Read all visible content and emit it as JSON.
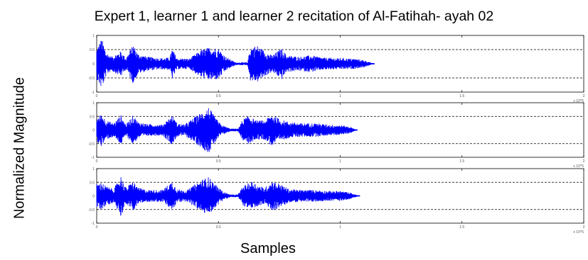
{
  "title": "Expert 1, learner 1 and learner 2 recitation of Al-Fatihah- ayah 02",
  "xlabel": "Samples",
  "ylabel": "Normalized Magnitude",
  "colors": {
    "signal": "#0000ff",
    "axes": "#000000",
    "grid": "#000000"
  },
  "chart_data": [
    {
      "type": "line",
      "name_hint": "expert 1",
      "xlim": [
        0,
        2.0
      ],
      "ylim": [
        -1,
        1
      ],
      "x_ticks": [
        "0",
        "0.5",
        "1",
        "1.5",
        "2"
      ],
      "y_ticks": [
        "1",
        "0.5",
        "0",
        "-0.5",
        "-1"
      ],
      "x_multiplier": "x 10^5",
      "signal_end": 1.14,
      "envelope": [
        [
          0.0,
          0.55
        ],
        [
          0.02,
          0.9
        ],
        [
          0.04,
          0.4
        ],
        [
          0.06,
          0.25
        ],
        [
          0.1,
          0.45
        ],
        [
          0.12,
          0.2
        ],
        [
          0.15,
          0.7
        ],
        [
          0.17,
          0.35
        ],
        [
          0.21,
          0.25
        ],
        [
          0.26,
          0.2
        ],
        [
          0.3,
          0.22
        ],
        [
          0.31,
          0.55
        ],
        [
          0.33,
          0.2
        ],
        [
          0.38,
          0.18
        ],
        [
          0.43,
          0.5
        ],
        [
          0.47,
          0.6
        ],
        [
          0.5,
          0.55
        ],
        [
          0.53,
          0.25
        ],
        [
          0.57,
          0.05
        ],
        [
          0.62,
          0.05
        ],
        [
          0.63,
          0.6
        ],
        [
          0.66,
          0.65
        ],
        [
          0.69,
          0.45
        ],
        [
          0.72,
          0.3
        ],
        [
          0.76,
          0.55
        ],
        [
          0.78,
          0.3
        ],
        [
          0.83,
          0.25
        ],
        [
          0.88,
          0.3
        ],
        [
          0.93,
          0.22
        ],
        [
          1.0,
          0.2
        ],
        [
          1.06,
          0.18
        ],
        [
          1.1,
          0.12
        ],
        [
          1.14,
          0.0
        ]
      ]
    },
    {
      "type": "line",
      "name_hint": "learner 1",
      "xlim": [
        0,
        2.0
      ],
      "ylim": [
        -1,
        1
      ],
      "x_ticks": [
        "0",
        "0.5",
        "1",
        "1.5",
        "2"
      ],
      "y_ticks": [
        "1",
        "0.5",
        "0",
        "-0.5",
        "-1"
      ],
      "x_multiplier": "x 10^5",
      "signal_end": 1.07,
      "envelope": [
        [
          0.0,
          0.45
        ],
        [
          0.02,
          0.6
        ],
        [
          0.04,
          0.35
        ],
        [
          0.07,
          0.25
        ],
        [
          0.1,
          0.55
        ],
        [
          0.12,
          0.2
        ],
        [
          0.15,
          0.55
        ],
        [
          0.17,
          0.3
        ],
        [
          0.21,
          0.22
        ],
        [
          0.27,
          0.2
        ],
        [
          0.31,
          0.55
        ],
        [
          0.33,
          0.25
        ],
        [
          0.36,
          0.2
        ],
        [
          0.43,
          0.65
        ],
        [
          0.46,
          0.85
        ],
        [
          0.48,
          0.55
        ],
        [
          0.51,
          0.2
        ],
        [
          0.55,
          0.05
        ],
        [
          0.58,
          0.05
        ],
        [
          0.6,
          0.4
        ],
        [
          0.63,
          0.55
        ],
        [
          0.65,
          0.35
        ],
        [
          0.69,
          0.35
        ],
        [
          0.72,
          0.6
        ],
        [
          0.75,
          0.4
        ],
        [
          0.79,
          0.3
        ],
        [
          0.84,
          0.25
        ],
        [
          0.9,
          0.25
        ],
        [
          0.95,
          0.2
        ],
        [
          1.0,
          0.18
        ],
        [
          1.04,
          0.12
        ],
        [
          1.07,
          0.0
        ]
      ]
    },
    {
      "type": "line",
      "name_hint": "learner 2",
      "xlim": [
        0,
        2.0
      ],
      "ylim": [
        -1,
        1
      ],
      "x_ticks": [
        "0",
        "0.5",
        "1",
        "1.5",
        "2"
      ],
      "y_ticks": [
        "1",
        "0.5",
        "0",
        "-0.5",
        "-1"
      ],
      "x_multiplier": "x 10^5",
      "signal_end": 1.08,
      "envelope": [
        [
          0.0,
          0.45
        ],
        [
          0.02,
          0.5
        ],
        [
          0.04,
          0.35
        ],
        [
          0.07,
          0.25
        ],
        [
          0.1,
          0.75
        ],
        [
          0.12,
          0.3
        ],
        [
          0.15,
          0.55
        ],
        [
          0.17,
          0.3
        ],
        [
          0.21,
          0.22
        ],
        [
          0.27,
          0.22
        ],
        [
          0.31,
          0.55
        ],
        [
          0.33,
          0.25
        ],
        [
          0.37,
          0.2
        ],
        [
          0.43,
          0.6
        ],
        [
          0.46,
          0.7
        ],
        [
          0.49,
          0.4
        ],
        [
          0.52,
          0.15
        ],
        [
          0.55,
          0.05
        ],
        [
          0.58,
          0.05
        ],
        [
          0.6,
          0.35
        ],
        [
          0.64,
          0.55
        ],
        [
          0.66,
          0.4
        ],
        [
          0.69,
          0.3
        ],
        [
          0.72,
          0.55
        ],
        [
          0.75,
          0.45
        ],
        [
          0.79,
          0.25
        ],
        [
          0.84,
          0.22
        ],
        [
          0.9,
          0.22
        ],
        [
          0.95,
          0.18
        ],
        [
          1.0,
          0.18
        ],
        [
          1.04,
          0.12
        ],
        [
          1.08,
          0.0
        ]
      ]
    }
  ]
}
